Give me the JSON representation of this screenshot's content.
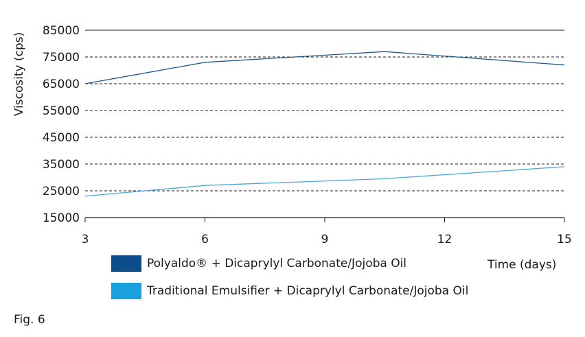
{
  "chart_data": {
    "type": "line",
    "ylabel": "Viscosity (cps)",
    "xlabel": "Time (days)",
    "ylim": [
      15000,
      85000
    ],
    "yticks": [
      15000,
      25000,
      35000,
      45000,
      55000,
      65000,
      75000,
      85000
    ],
    "xlim": [
      3,
      15
    ],
    "xticks": [
      3,
      6,
      9,
      12,
      15
    ],
    "grid": "horizontal dashed",
    "series": [
      {
        "name": "Polyaldo® + Dicaprylyl Carbonate/Jojoba Oil",
        "color": "#1f5a8c",
        "x": [
          3,
          6,
          10.5,
          15
        ],
        "y": [
          65000,
          73000,
          77000,
          72000
        ]
      },
      {
        "name": "Traditional Emulsifier + Dicaprylyl Carbonate/Jojoba Oil",
        "color": "#4aa8dc",
        "x": [
          3,
          6,
          10.5,
          15
        ],
        "y": [
          23000,
          27000,
          29500,
          34000
        ]
      }
    ]
  },
  "legend": {
    "swatch_colors": [
      "#0d4e8a",
      "#1aa0dc"
    ]
  },
  "figure_label": "Fig. 6"
}
